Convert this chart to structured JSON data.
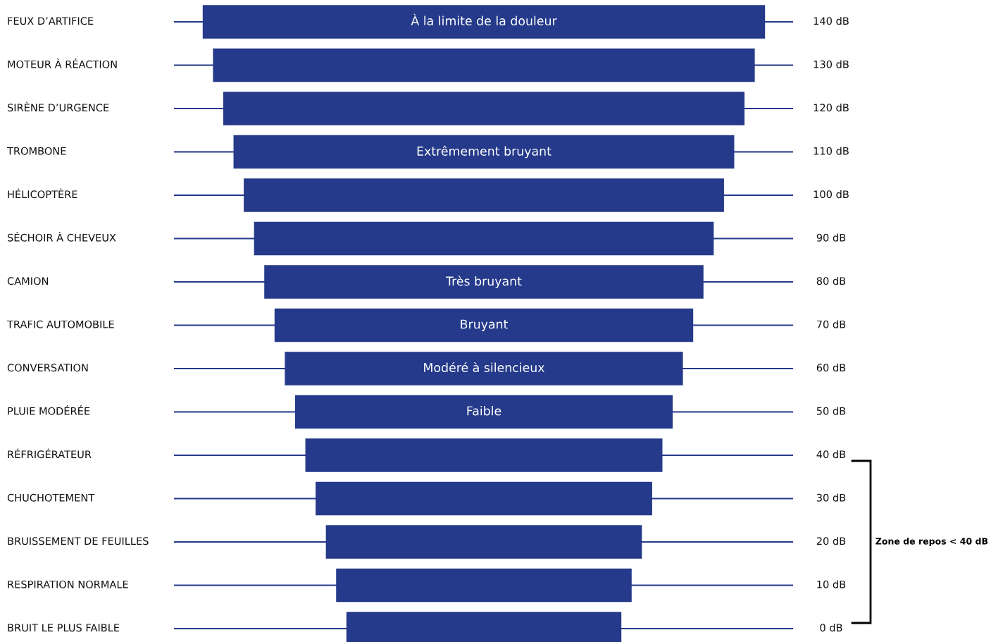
{
  "chart_data": {
    "type": "other",
    "categories": [
      "FEUX D’ARTIFICE",
      "MOTEUR À RÉACTION",
      "SIRÈNE D’URGENCE",
      "TROMBONE",
      "HÉLICOPTÈRE",
      "SÉCHOIR À CHEVEUX",
      "CAMION",
      "TRAFIC AUTOMOBILE",
      "CONVERSATION",
      "PLUIE MODÉRÉE",
      "RÉFRIGÉRATEUR",
      "CHUCHOTEMENT",
      "BRUISSEMENT DE FEUILLES",
      "RESPIRATION NORMALE",
      "BRUIT LE PLUS FAIBLE"
    ],
    "values": [
      140,
      130,
      120,
      110,
      100,
      90,
      80,
      70,
      60,
      50,
      40,
      30,
      20,
      10,
      0
    ],
    "value_labels": [
      "140 dB",
      "130 dB",
      "120 dB",
      "110 dB",
      "100 dB",
      "90 dB",
      "80 dB",
      "70 dB",
      "60 dB",
      "50 dB",
      "40 dB",
      "30 dB",
      "20 dB",
      "10 dB",
      "0 dB"
    ],
    "color": "#253a8a",
    "annotations": [
      {
        "text": "À la limite de la douleur",
        "y": "FEUX D’ARTIFICE"
      },
      {
        "text": "Extrêmement bruyant",
        "y": "TROMBONE"
      },
      {
        "text": "Très bruyant",
        "y": "CAMION"
      },
      {
        "text": "Bruyant",
        "y": "TRAFIC AUTOMOBILE"
      },
      {
        "text": "Modéré à silencieux",
        "y": "CONVERSATION"
      },
      {
        "text": "Faible",
        "y": "PLUIE MODÉRÉE"
      },
      "Zone de repos < 40 dB"
    ]
  }
}
